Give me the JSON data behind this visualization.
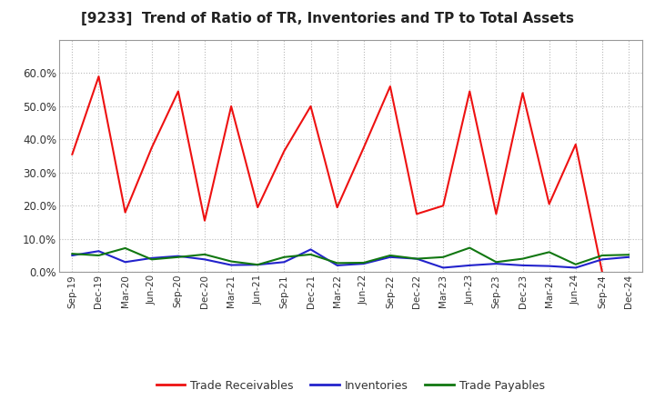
{
  "title": "[9233]  Trend of Ratio of TR, Inventories and TP to Total Assets",
  "labels": [
    "Sep-19",
    "Dec-19",
    "Mar-20",
    "Jun-20",
    "Sep-20",
    "Dec-20",
    "Mar-21",
    "Jun-21",
    "Sep-21",
    "Dec-21",
    "Mar-22",
    "Jun-22",
    "Sep-22",
    "Dec-22",
    "Mar-23",
    "Jun-23",
    "Sep-23",
    "Dec-23",
    "Mar-24",
    "Jun-24",
    "Sep-24",
    "Dec-24"
  ],
  "trade_receivables": [
    0.355,
    0.59,
    0.18,
    0.375,
    0.545,
    0.155,
    0.5,
    0.195,
    0.365,
    0.5,
    0.195,
    0.375,
    0.56,
    0.175,
    0.2,
    0.545,
    0.175,
    0.54,
    0.205,
    0.385,
    0.0,
    null
  ],
  "inventories": [
    0.05,
    0.063,
    0.03,
    0.042,
    0.048,
    0.038,
    0.021,
    0.022,
    0.03,
    0.068,
    0.02,
    0.025,
    0.045,
    0.04,
    0.013,
    0.02,
    0.025,
    0.02,
    0.018,
    0.013,
    0.038,
    0.045
  ],
  "trade_payables": [
    0.055,
    0.05,
    0.072,
    0.038,
    0.045,
    0.053,
    0.032,
    0.022,
    0.045,
    0.053,
    0.027,
    0.028,
    0.05,
    0.04,
    0.045,
    0.073,
    0.03,
    0.04,
    0.06,
    0.023,
    0.05,
    0.052
  ],
  "tr_color": "#ee1111",
  "inv_color": "#2222cc",
  "tp_color": "#117711",
  "ylim": [
    0.0,
    0.7
  ],
  "yticks": [
    0.0,
    0.1,
    0.2,
    0.3,
    0.4,
    0.5,
    0.6
  ],
  "bg_color": "#ffffff",
  "grid_color": "#bbbbbb",
  "title_fontsize": 11,
  "legend_labels": [
    "Trade Receivables",
    "Inventories",
    "Trade Payables"
  ]
}
